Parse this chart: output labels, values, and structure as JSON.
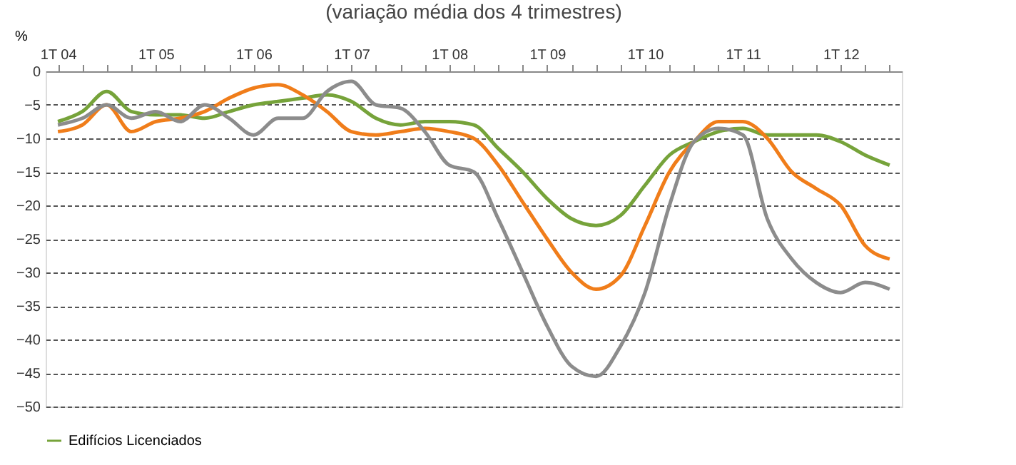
{
  "chart_data": {
    "type": "line",
    "subtitle": "(variação média dos 4 trimestres)",
    "ylabel": "%",
    "categories": [
      "1T 04",
      null,
      null,
      null,
      "1T 05",
      null,
      null,
      null,
      "1T 06",
      null,
      null,
      null,
      "1T 07",
      null,
      null,
      null,
      "1T 08",
      null,
      null,
      null,
      "1T 09",
      null,
      null,
      null,
      "1T 10",
      null,
      null,
      null,
      "1T 11",
      null,
      null,
      null,
      "1T 12",
      null,
      null
    ],
    "series": [
      {
        "name": "Edifícios Licenciados",
        "color": "#76a33a",
        "values": [
          -7.5,
          -6,
          -3,
          -6,
          -6.5,
          -6.5,
          -7,
          -6,
          -5,
          -4.5,
          -4,
          -3.5,
          -4.5,
          -7,
          -8,
          -7.5,
          -7.5,
          -8,
          -11.5,
          -15,
          -19,
          -22,
          -23,
          -21.5,
          -17,
          -12.5,
          -10.5,
          -9,
          -8.5,
          -9.5,
          -9.5,
          -9.5,
          -10.5,
          -12.5,
          -14
        ]
      },
      {
        "color": "#f07d1a",
        "values": [
          -9,
          -8,
          -5,
          -9,
          -7.5,
          -7,
          -6,
          -4,
          -2.5,
          -2,
          -3.5,
          -6,
          -9,
          -9.5,
          -9,
          -8.5,
          -9,
          -10,
          -14,
          -19.5,
          -25,
          -30,
          -32.5,
          -30.5,
          -23,
          -15,
          -10.5,
          -7.5,
          -7.5,
          -10,
          -15,
          -17.5,
          -20,
          -26,
          -28
        ]
      },
      {
        "color": "#8c8c8c",
        "values": [
          -8,
          -7,
          -5,
          -7,
          -6,
          -7.5,
          -5,
          -7,
          -9.5,
          -7,
          -7,
          -3,
          -1.5,
          -5,
          -5.5,
          -9,
          -14,
          -15,
          -22,
          -30,
          -38,
          -44,
          -45.5,
          -41,
          -33,
          -20,
          -10.5,
          -8.5,
          -9.5,
          -22,
          -28,
          -31.5,
          -33,
          -31.5,
          -32.5
        ]
      }
    ],
    "ylim": [
      -50,
      0
    ],
    "yticks": [
      0,
      -5,
      -10,
      -15,
      -20,
      -25,
      -30,
      -35,
      -40,
      -45,
      -50
    ],
    "grid": "y",
    "legend": "bottom",
    "line_style": "solid",
    "marker": "none"
  }
}
